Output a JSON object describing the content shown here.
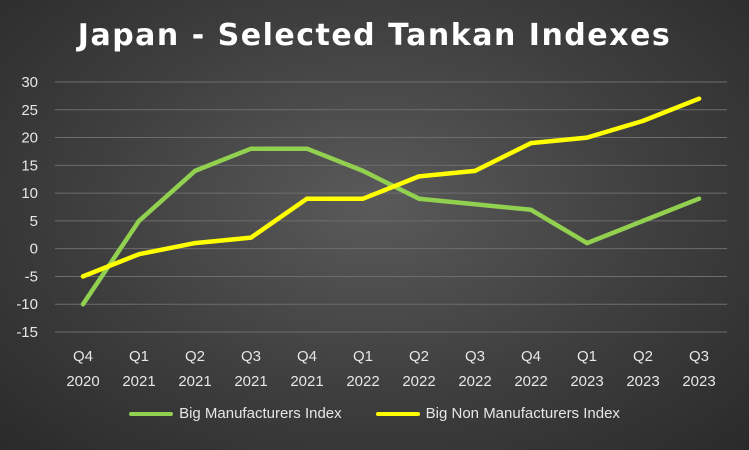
{
  "chart_data": {
    "type": "line",
    "title": "Japan - Selected Tankan Indexes",
    "categories": [
      [
        "Q4",
        "2020"
      ],
      [
        "Q1",
        "2021"
      ],
      [
        "Q2",
        "2021"
      ],
      [
        "Q3",
        "2021"
      ],
      [
        "Q4",
        "2021"
      ],
      [
        "Q1",
        "2022"
      ],
      [
        "Q2",
        "2022"
      ],
      [
        "Q3",
        "2022"
      ],
      [
        "Q4",
        "2022"
      ],
      [
        "Q1",
        "2023"
      ],
      [
        "Q2",
        "2023"
      ],
      [
        "Q3",
        "2023"
      ]
    ],
    "yticks": [
      30,
      25,
      20,
      15,
      10,
      5,
      0,
      -5,
      -10,
      -15
    ],
    "ylim": [
      -15,
      30
    ],
    "grid": true,
    "legend_position": "bottom",
    "series": [
      {
        "name": "Big Manufacturers Index",
        "color": "#92d050",
        "values": [
          -10,
          5,
          14,
          18,
          18,
          14,
          9,
          8,
          7,
          1,
          5,
          9
        ]
      },
      {
        "name": "Big Non Manufacturers Index",
        "color": "#ffff00",
        "values": [
          -5,
          -1,
          1,
          2,
          9,
          9,
          13,
          14,
          19,
          20,
          23,
          27
        ]
      }
    ]
  }
}
